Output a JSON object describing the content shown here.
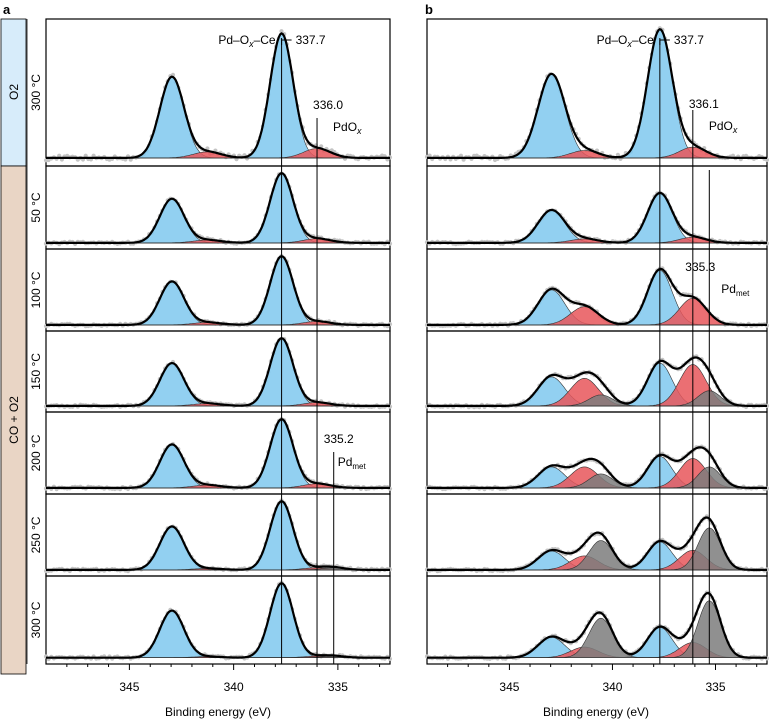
{
  "figure": {
    "panel_a_letter": "a",
    "panel_b_letter": "b",
    "condition_o2": "O2",
    "condition_co_o2": "CO + O2",
    "axis_label": "Binding energy (eV)",
    "temperatures": [
      "300 °C",
      "50 °C",
      "100 °C",
      "150 °C",
      "200 °C",
      "250 °C",
      "300 °C"
    ]
  },
  "colors": {
    "pd_ox_ce": "#7fc8ee",
    "pdox": "#e8565a",
    "pd_met": "#7d7d7d",
    "envelope": "#000000",
    "raw_data": "#c4c4c4",
    "o2_band": "#d7ecfa",
    "co_o2_band": "#e9d5c5"
  },
  "chart_data": [
    {
      "type": "line",
      "panel": "a",
      "xlabel": "Binding energy (eV)",
      "xlim": [
        349,
        332.5
      ],
      "x_reversed": true,
      "xticks": [
        345,
        340,
        335
      ],
      "rows": [
        "300 °C (O2)",
        "50 °C",
        "100 °C",
        "150 °C",
        "200 °C",
        "250 °C",
        "300 °C"
      ],
      "annotations": [
        {
          "text": "Pd–Ox–Ce",
          "value": 337.7
        },
        {
          "text": "PdOx",
          "value": 336.0
        },
        {
          "text": "Pdmet",
          "value": 335.2
        }
      ],
      "components": [
        {
          "name": "Pd–Ox–Ce (3d5/2)",
          "center": 337.7,
          "width": 0.55,
          "amplitudes": [
            0.92,
            0.98,
            0.98,
            0.98,
            0.98,
            0.98,
            0.98
          ]
        },
        {
          "name": "Pd–Ox–Ce (3d3/2)",
          "center": 342.96,
          "width": 0.58,
          "amplitudes": [
            0.6,
            0.62,
            0.62,
            0.62,
            0.62,
            0.62,
            0.62
          ]
        },
        {
          "name": "PdOx (3d5/2)",
          "center": 336.0,
          "width": 0.65,
          "amplitudes": [
            0.07,
            0.06,
            0.05,
            0.05,
            0.06,
            0.03,
            0.02
          ]
        },
        {
          "name": "PdOx (3d3/2)",
          "center": 341.26,
          "width": 0.68,
          "amplitudes": [
            0.045,
            0.04,
            0.035,
            0.035,
            0.04,
            0.02,
            0.015
          ]
        },
        {
          "name": "Pdmet (3d5/2)",
          "center": 335.2,
          "width": 0.55,
          "amplitudes": [
            0,
            0,
            0,
            0,
            0,
            0.03,
            0.02
          ]
        }
      ]
    },
    {
      "type": "line",
      "panel": "b",
      "xlabel": "Binding energy (eV)",
      "xlim": [
        349,
        332.5
      ],
      "x_reversed": true,
      "xticks": [
        345,
        340,
        335
      ],
      "rows": [
        "300 °C (O2)",
        "50 °C",
        "100 °C",
        "150 °C",
        "200 °C",
        "250 °C",
        "300 °C"
      ],
      "annotations": [
        {
          "text": "Pd–Ox–Ce",
          "value": 337.7
        },
        {
          "text": "PdOx",
          "value": 336.1
        },
        {
          "text": "Pdmet",
          "value": 335.3
        }
      ],
      "components": [
        {
          "name": "Pd–Ox–Ce (3d5/2)",
          "center": 337.7,
          "width": 0.6,
          "amplitudes": [
            0.95,
            0.7,
            0.78,
            0.62,
            0.45,
            0.4,
            0.4
          ]
        },
        {
          "name": "Pd–Ox–Ce (3d3/2)",
          "center": 342.96,
          "width": 0.65,
          "amplitudes": [
            0.62,
            0.46,
            0.5,
            0.42,
            0.3,
            0.27,
            0.27
          ]
        },
        {
          "name": "PdOx (3d5/2)",
          "center": 336.1,
          "width": 0.65,
          "amplitudes": [
            0.08,
            0.08,
            0.38,
            0.6,
            0.42,
            0.28,
            0.2
          ]
        },
        {
          "name": "PdOx (3d3/2)",
          "center": 341.36,
          "width": 0.68,
          "amplitudes": [
            0.055,
            0.055,
            0.26,
            0.4,
            0.3,
            0.2,
            0.14
          ]
        },
        {
          "name": "Pdmet (3d5/2)",
          "center": 335.3,
          "width": 0.55,
          "amplitudes": [
            0,
            0,
            0,
            0.22,
            0.3,
            0.6,
            0.75
          ]
        },
        {
          "name": "Pdmet (3d3/2)",
          "center": 340.56,
          "width": 0.58,
          "amplitudes": [
            0,
            0,
            0,
            0.16,
            0.2,
            0.42,
            0.52
          ]
        }
      ]
    }
  ]
}
